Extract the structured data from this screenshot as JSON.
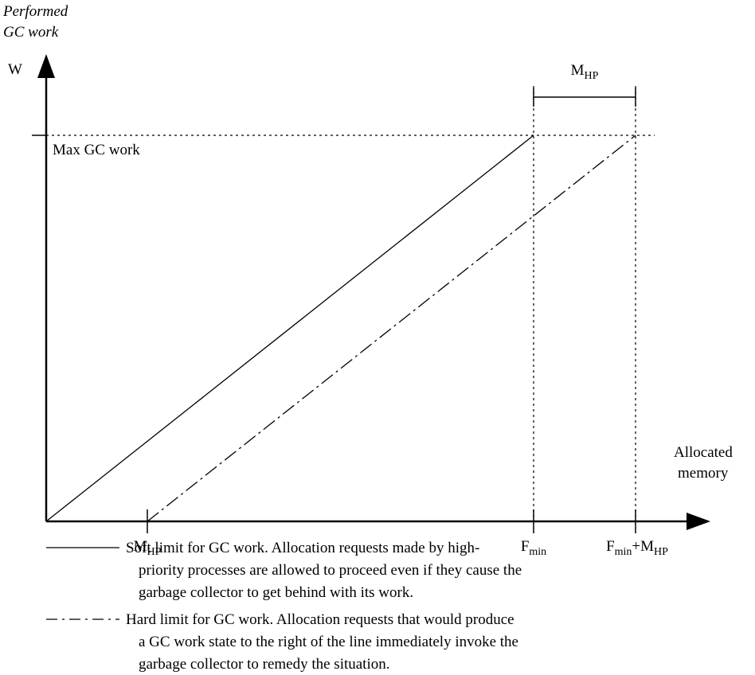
{
  "y_axis": {
    "label_lines": [
      "Performed",
      "GC work"
    ],
    "symbol": "W"
  },
  "x_axis": {
    "label_lines": [
      "Allocated",
      "memory"
    ]
  },
  "max_label": "Max GC work",
  "span_label": {
    "base": "M",
    "sub": "HP"
  },
  "x_markers": [
    {
      "parts": [
        {
          "base": "M",
          "sub": "HP"
        }
      ]
    },
    {
      "parts": [
        {
          "base": "F",
          "sub": "min"
        }
      ]
    },
    {
      "parts": [
        {
          "base": "F",
          "sub": "min"
        },
        {
          "base": "+M",
          "sub": "HP"
        }
      ]
    }
  ],
  "legend": [
    {
      "lines": [
        "Soft limit for GC work. Allocation requests made by high-",
        "priority processes are allowed to proceed even if they cause the",
        "garbage collector to get behind with its work."
      ]
    },
    {
      "lines": [
        "Hard limit for GC work. Allocation requests that would produce",
        "a GC work state to the right of the line immediately invoke the",
        "garbage collector to remedy the situation."
      ]
    }
  ]
}
